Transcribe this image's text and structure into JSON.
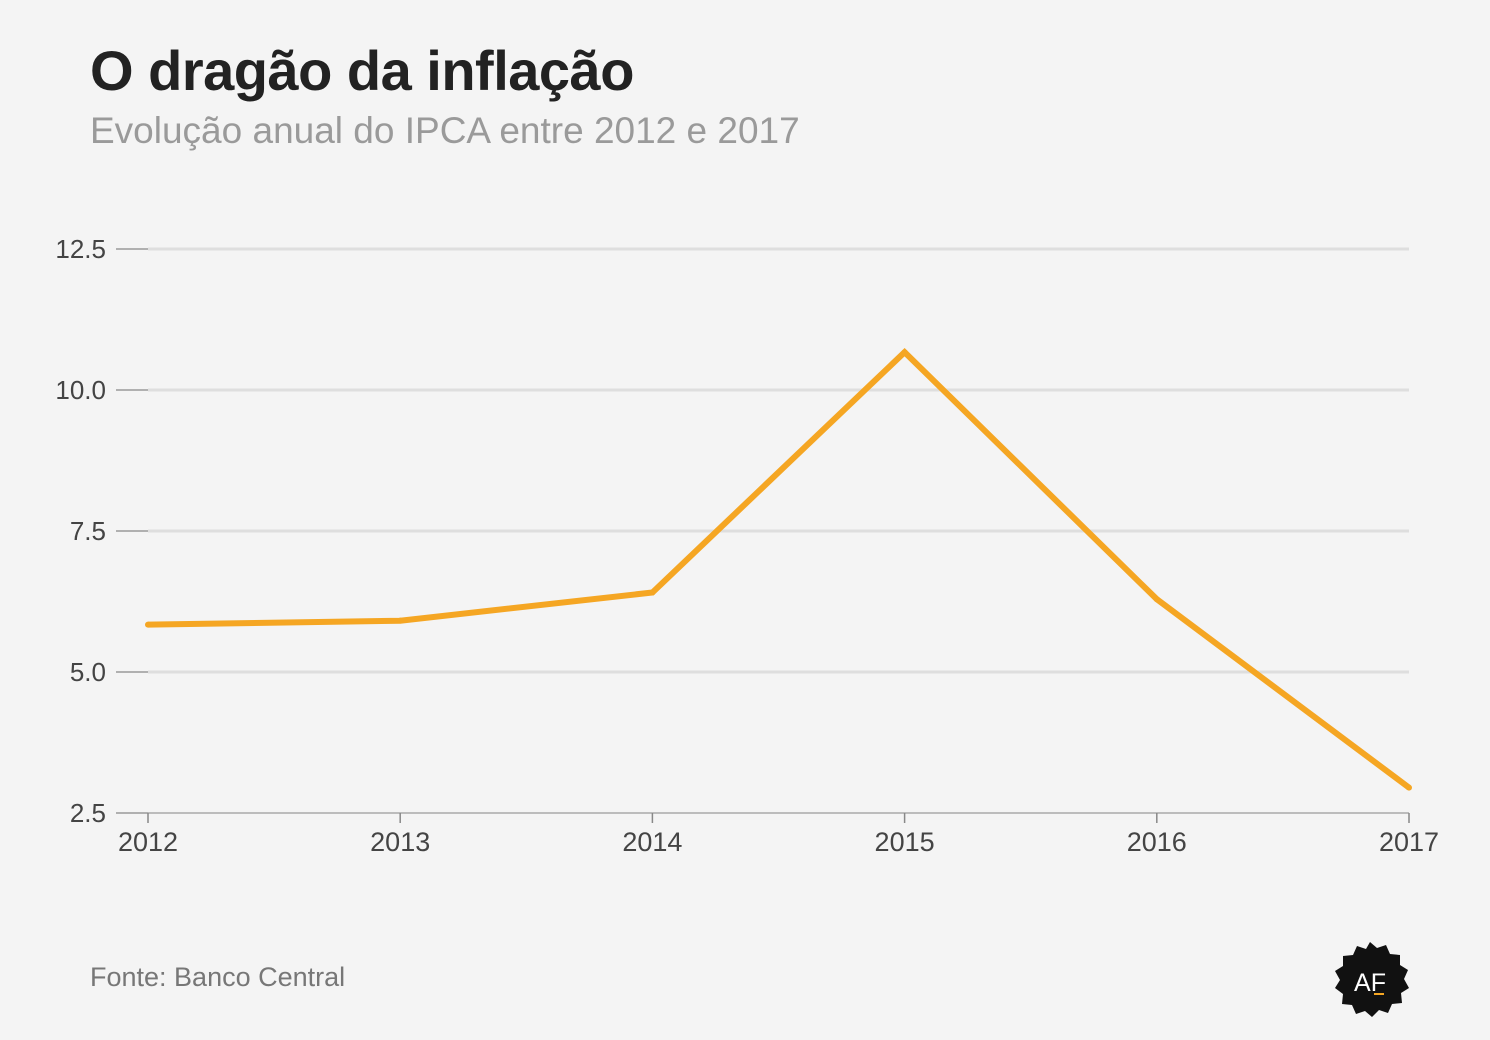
{
  "header": {
    "title": "O dragão da inflação",
    "subtitle": "Evolução anual do IPCA entre 2012 e 2017"
  },
  "footer": {
    "source": "Fonte: Banco Central",
    "logo_text": "AF"
  },
  "colors": {
    "background": "#f4f4f4",
    "line": "#f5a623",
    "grid": "#dedede",
    "tick_text": "#444444"
  },
  "chart_data": {
    "type": "line",
    "title": "O dragão da inflação",
    "subtitle": "Evolução anual do IPCA entre 2012 e 2017",
    "xlabel": "",
    "ylabel": "",
    "x": [
      "2012",
      "2013",
      "2014",
      "2015",
      "2016",
      "2017"
    ],
    "series": [
      {
        "values": [
          5.84,
          5.91,
          6.41,
          10.67,
          6.29,
          2.95
        ]
      }
    ],
    "ylim": [
      2.5,
      12.5
    ],
    "yticks": [
      "2.5",
      "5.0",
      "7.5",
      "10.0",
      "12.5"
    ],
    "grid": true,
    "legend": "none"
  }
}
